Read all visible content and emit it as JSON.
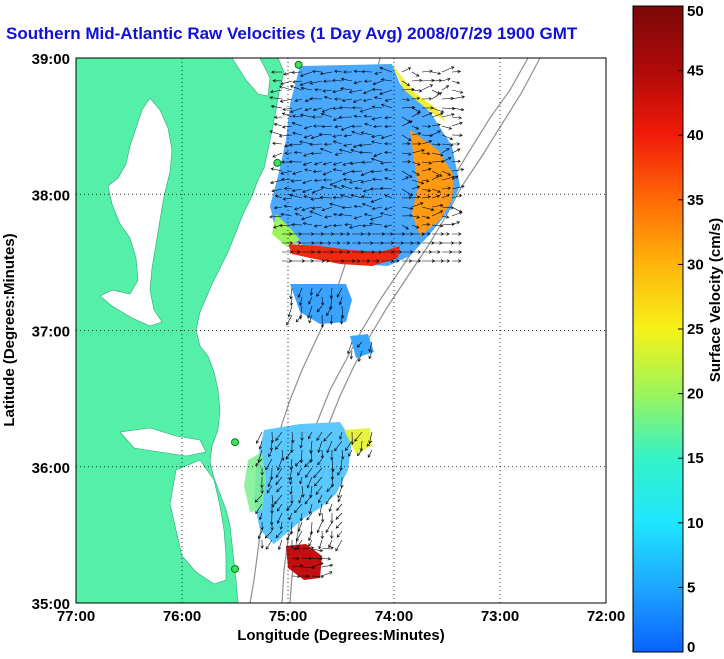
{
  "title": "Southern Mid-Atlantic Raw Velocities (1 Day Avg) 2008/07/29 1900 GMT",
  "x_axis": {
    "label": "Longitude (Degrees:Minutes)",
    "ticks": [
      "77:00",
      "76:00",
      "75:00",
      "74:00",
      "73:00",
      "72:00"
    ]
  },
  "y_axis": {
    "label": "Latitude (Degrees:Minutes)",
    "ticks": [
      "39:00",
      "38:00",
      "37:00",
      "36:00",
      "35:00"
    ]
  },
  "colorbar": {
    "label": "Surface Velocity (cm/s)",
    "ticks": [
      "0",
      "5",
      "10",
      "15",
      "20",
      "25",
      "30",
      "35",
      "40",
      "45",
      "50"
    ],
    "range": [
      0,
      50
    ],
    "colors": [
      "#0a62ff",
      "#1ea6ff",
      "#1ee6ff",
      "#34f2c8",
      "#9cf45a",
      "#f6f21a",
      "#ffb40a",
      "#ff6a06",
      "#f21a08",
      "#b00a0a",
      "#7a0808"
    ]
  },
  "map": {
    "lon_range": [
      -77,
      -72
    ],
    "lat_range": [
      35,
      39
    ],
    "land_color": "#55f0a8",
    "grid": true,
    "stations": [
      {
        "lon": -74.9,
        "lat": 38.95
      },
      {
        "lon": -75.1,
        "lat": 38.23
      },
      {
        "lon": -75.5,
        "lat": 36.18
      },
      {
        "lon": -75.5,
        "lat": 35.25
      }
    ]
  }
}
